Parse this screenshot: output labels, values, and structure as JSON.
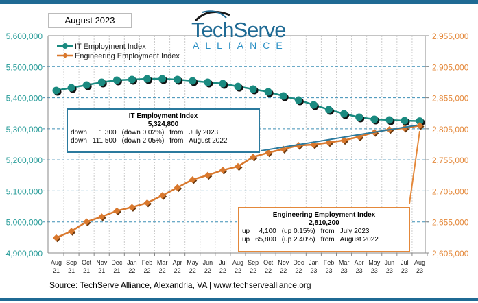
{
  "period_label": "August 2023",
  "logo": {
    "text_main": "TechServe",
    "text_sub": "ALLIANCE"
  },
  "source": "Source: TechServe Alliance, Alexandria, VA | www.techservealliance.org",
  "it_box": {
    "title": "IT Employment Index",
    "value": "5,324,800",
    "rows": [
      [
        "down",
        "1,300",
        "(down 0.02%)",
        "from",
        "July 2023"
      ],
      [
        "down",
        "111,500",
        "(down 2.05%)",
        "from",
        "August 2022"
      ]
    ]
  },
  "eng_box": {
    "title": "Engineering Employment Index",
    "value": "2,810,200",
    "rows": [
      [
        "up",
        "4,100",
        "(up 0.15%)",
        "from",
        "July 2023"
      ],
      [
        "up",
        "65,800",
        "(up 2.40%)",
        "from",
        "August 2022"
      ]
    ]
  },
  "chart_data": {
    "type": "line",
    "categories": [
      [
        "Aug",
        "21"
      ],
      [
        "Sep",
        "21"
      ],
      [
        "Oct",
        "21"
      ],
      [
        "Nov",
        "21"
      ],
      [
        "Dec",
        "21"
      ],
      [
        "Jan",
        "22"
      ],
      [
        "Feb",
        "22"
      ],
      [
        "Mar",
        "22"
      ],
      [
        "Apr",
        "22"
      ],
      [
        "May",
        "22"
      ],
      [
        "Jun",
        "22"
      ],
      [
        "Jul",
        "22"
      ],
      [
        "Aug",
        "22"
      ],
      [
        "Sep",
        "22"
      ],
      [
        "Oct",
        "22"
      ],
      [
        "Nov",
        "22"
      ],
      [
        "Dec",
        "22"
      ],
      [
        "Jan",
        "23"
      ],
      [
        "Feb",
        "23"
      ],
      [
        "Mar",
        "23"
      ],
      [
        "Apr",
        "23"
      ],
      [
        "May",
        "23"
      ],
      [
        "Jun",
        "23"
      ],
      [
        "Jul",
        "23"
      ],
      [
        "Aug",
        "23"
      ]
    ],
    "left_axis": {
      "ylim": [
        4900000,
        5600000
      ],
      "ticks": [
        "4,900,000",
        "5,000,000",
        "5,100,000",
        "5,200,000",
        "5,300,000",
        "5,400,000",
        "5,500,000",
        "5,600,000"
      ],
      "color": "#2a9d9a"
    },
    "right_axis": {
      "ylim": [
        2605000,
        2955000
      ],
      "ticks": [
        "2,605,000",
        "2,655,000",
        "2,705,000",
        "2,755,000",
        "2,805,000",
        "2,855,000",
        "2,905,000",
        "2,955,000"
      ],
      "color": "#e4883a"
    },
    "legend_position": "top-left",
    "grid": true,
    "series": [
      {
        "name": "IT Employment Index",
        "axis": "left",
        "color": "#1a8a80",
        "marker": "circle",
        "values": [
          5423400,
          5432200,
          5441000,
          5449900,
          5456500,
          5458700,
          5460900,
          5460900,
          5458700,
          5454300,
          5449900,
          5445500,
          5436300,
          5427800,
          5419000,
          5405700,
          5392500,
          5377000,
          5361600,
          5348300,
          5337300,
          5330700,
          5328500,
          5326100,
          5324800
        ]
      },
      {
        "name": "Engineering Employment Index",
        "axis": "right",
        "color": "#d9782d",
        "marker": "diamond",
        "values": [
          2629500,
          2640000,
          2655200,
          2663400,
          2672800,
          2678600,
          2685700,
          2697400,
          2710300,
          2723100,
          2730200,
          2738400,
          2744400,
          2759500,
          2766500,
          2772300,
          2778200,
          2779400,
          2782900,
          2786400,
          2792200,
          2799200,
          2803900,
          2806100,
          2810200
        ]
      }
    ]
  }
}
